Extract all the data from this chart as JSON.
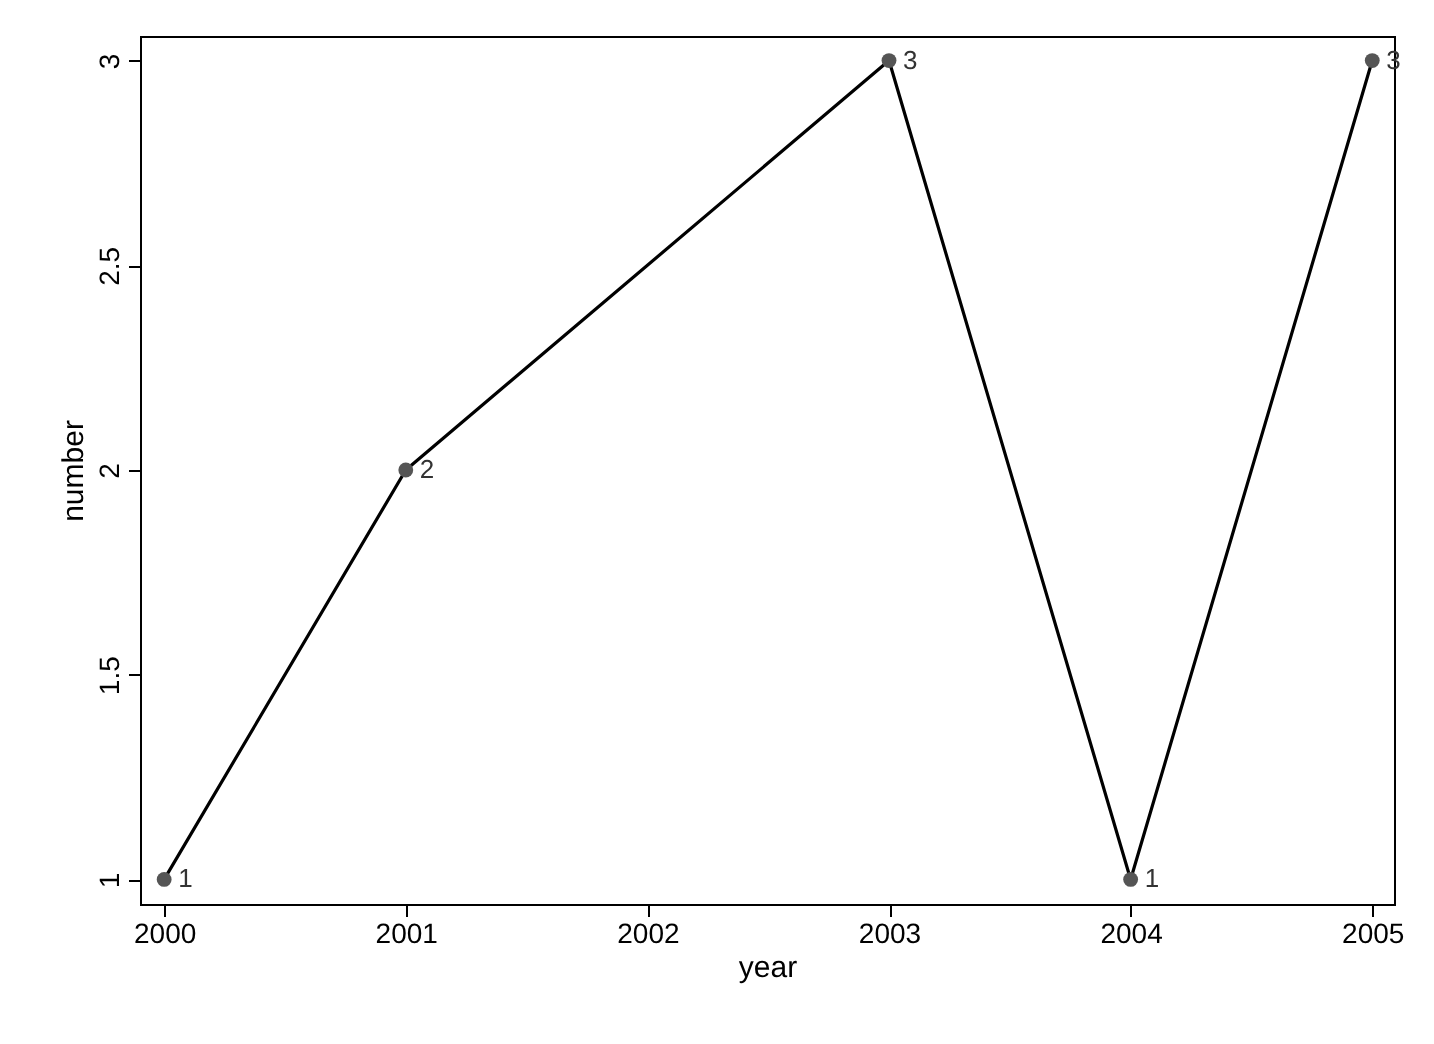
{
  "chart_data": {
    "type": "line",
    "xlabel": "year",
    "ylabel": "number",
    "x": [
      2000,
      2001,
      2003,
      2004,
      2005
    ],
    "series": [
      {
        "color": "#000000",
        "values": [
          1,
          2,
          3,
          1,
          3
        ]
      }
    ],
    "marker": "circle",
    "line_style": "solid",
    "data_labels": true,
    "grid": false,
    "xlim": [
      1999.9,
      2005.09
    ],
    "xticks": [
      2000,
      2001,
      2002,
      2003,
      2004,
      2005
    ],
    "ylim": [
      0.94,
      3.06
    ],
    "yticks": [
      1,
      1.5,
      2,
      2.5,
      3
    ]
  }
}
